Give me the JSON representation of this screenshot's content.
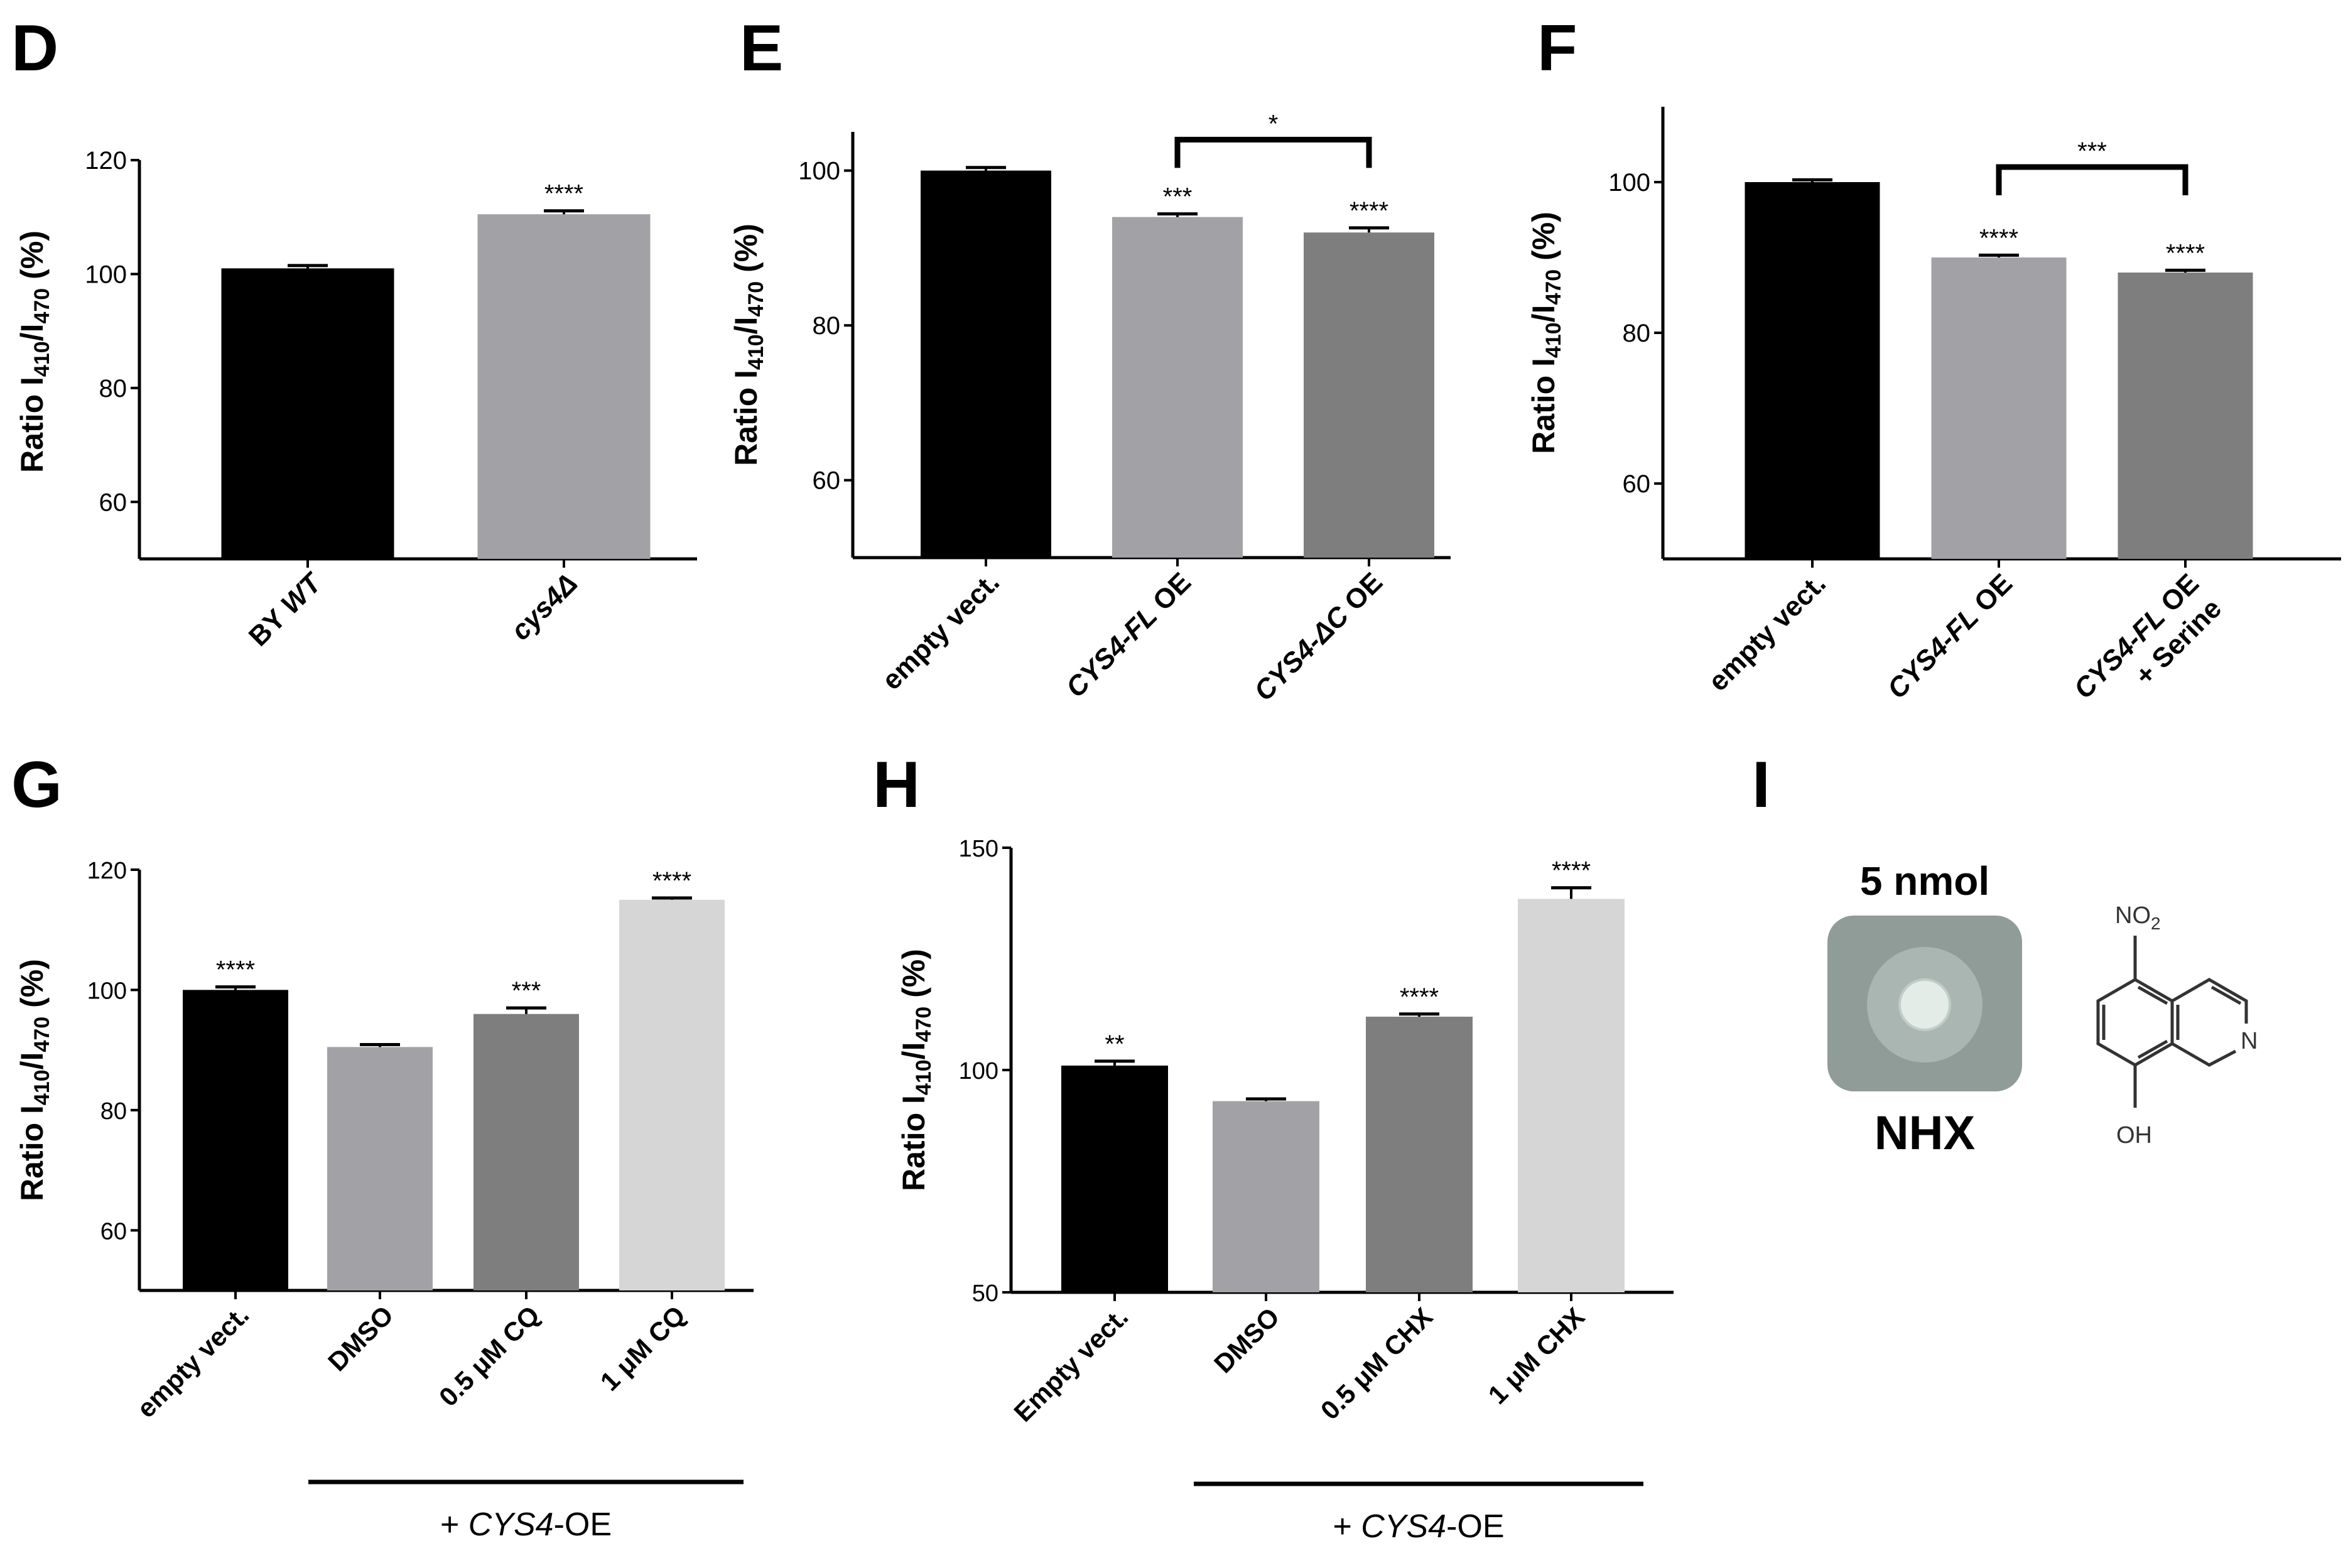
{
  "panels": {
    "D": {
      "letter": "D"
    },
    "E": {
      "letter": "E"
    },
    "F": {
      "letter": "F"
    },
    "G": {
      "letter": "G"
    },
    "H": {
      "letter": "H"
    },
    "I": {
      "letter": "I",
      "amount": "5 nmol",
      "compound": "NHX",
      "group_no2": "NO",
      "group_no2_sub": "2",
      "atom_n": "N",
      "group_oh": "OH"
    }
  },
  "chart_data": [
    {
      "panel": "D",
      "type": "bar",
      "ylabel": {
        "main": "Ratio I",
        "sub1": "410",
        "slash": "/I",
        "sub2": "470",
        "unit": " (%)"
      },
      "ylim": [
        50,
        120
      ],
      "yticks": [
        "60",
        "80",
        "100",
        "120"
      ],
      "categories": [
        {
          "parts": [
            {
              "t": "BY ",
              "i": false
            },
            {
              "t": "WT",
              "i": true
            }
          ]
        },
        {
          "parts": [
            {
              "t": "cys4Δ",
              "i": true
            }
          ]
        }
      ],
      "values": [
        101,
        110.5
      ],
      "errors": [
        0.5,
        0.6
      ],
      "colors": [
        "#000000",
        "#a2a2a6"
      ],
      "stars": [
        "",
        "****"
      ],
      "brackets": [],
      "groupline": null
    },
    {
      "panel": "E",
      "type": "bar",
      "ylabel": {
        "main": "Ratio I",
        "sub1": "410",
        "slash": "/I",
        "sub2": "470",
        "unit": " (%)"
      },
      "ylim": [
        50,
        105
      ],
      "yticks": [
        "60",
        "80",
        "100"
      ],
      "categories": [
        {
          "parts": [
            {
              "t": "empty vect.",
              "i": false
            }
          ]
        },
        {
          "parts": [
            {
              "t": "CYS4-FL",
              "i": true
            },
            {
              "t": " OE",
              "i": false
            }
          ]
        },
        {
          "parts": [
            {
              "t": "CYS4-ΔC",
              "i": true
            },
            {
              "t": " OE",
              "i": false
            }
          ]
        }
      ],
      "values": [
        100,
        94,
        92
      ],
      "errors": [
        0.4,
        0.4,
        0.6
      ],
      "colors": [
        "#000000",
        "#a2a2a6",
        "#7e7e7e"
      ],
      "stars": [
        "",
        "***",
        "****"
      ],
      "brackets": [
        {
          "from": 1,
          "to": 2,
          "y": 104,
          "label": "*"
        }
      ],
      "groupline": null
    },
    {
      "panel": "F",
      "type": "bar",
      "ylabel": {
        "main": "Ratio I",
        "sub1": "410",
        "slash": "/I",
        "sub2": "470",
        "unit": " (%)"
      },
      "ylim": [
        50,
        110
      ],
      "yticks": [
        "60",
        "80",
        "100"
      ],
      "categories": [
        {
          "parts": [
            {
              "t": "empty vect.",
              "i": false
            }
          ]
        },
        {
          "parts": [
            {
              "t": "CYS4-FL",
              "i": true
            },
            {
              "t": " OE",
              "i": false
            }
          ]
        },
        {
          "parts": [
            {
              "t": "CYS4-FL",
              "i": true
            },
            {
              "t": " OE",
              "i": false
            }
          ],
          "line2": "+ Serine"
        }
      ],
      "values": [
        100,
        90,
        88
      ],
      "errors": [
        0.3,
        0.3,
        0.3
      ],
      "colors": [
        "#000000",
        "#a2a2a6",
        "#7e7e7e"
      ],
      "stars": [
        "",
        "****",
        "****"
      ],
      "brackets": [
        {
          "from": 1,
          "to": 2,
          "y": 102,
          "label": "***"
        }
      ],
      "groupline": null
    },
    {
      "panel": "G",
      "type": "bar",
      "ylabel": {
        "main": "Ratio I",
        "sub1": "410",
        "slash": "/I",
        "sub2": "470",
        "unit": " (%)"
      },
      "ylim": [
        50,
        120
      ],
      "yticks": [
        "60",
        "80",
        "100",
        "120"
      ],
      "categories": [
        {
          "parts": [
            {
              "t": "empty vect.",
              "i": false
            }
          ]
        },
        {
          "parts": [
            {
              "t": "DMSO",
              "i": false
            }
          ]
        },
        {
          "parts": [
            {
              "t": "0.5 μM CQ",
              "i": false
            }
          ]
        },
        {
          "parts": [
            {
              "t": "1 μM CQ",
              "i": false
            }
          ]
        }
      ],
      "values": [
        100,
        90.5,
        96,
        115
      ],
      "errors": [
        0.5,
        0.4,
        1.0,
        0.3
      ],
      "colors": [
        "#000000",
        "#a2a2a6",
        "#7e7e7e",
        "#d6d6d6"
      ],
      "stars": [
        "****",
        "",
        "***",
        "****"
      ],
      "brackets": [],
      "groupline": {
        "from": 1,
        "to": 3,
        "parts": [
          {
            "t": "+ ",
            "i": false
          },
          {
            "t": "CYS4",
            "i": true
          },
          {
            "t": "-OE",
            "i": false
          }
        ]
      }
    },
    {
      "panel": "H",
      "type": "bar",
      "ylabel": {
        "main": "Ratio I",
        "sub1": "410",
        "slash": "/I",
        "sub2": "470",
        "unit": " (%)"
      },
      "ylim": [
        50,
        150
      ],
      "yticks": [
        "50",
        "100",
        "150"
      ],
      "categories": [
        {
          "parts": [
            {
              "t": "Empty vect.",
              "i": false
            }
          ]
        },
        {
          "parts": [
            {
              "t": "DMSO",
              "i": false
            }
          ]
        },
        {
          "parts": [
            {
              "t": "0.5 μM CHX",
              "i": false
            }
          ]
        },
        {
          "parts": [
            {
              "t": "1 μM CHX",
              "i": false
            }
          ]
        }
      ],
      "values": [
        101,
        93,
        112,
        138.5
      ],
      "errors": [
        1.0,
        0.5,
        0.6,
        2.5
      ],
      "colors": [
        "#000000",
        "#a2a2a6",
        "#7e7e7e",
        "#d6d6d6"
      ],
      "stars": [
        "**",
        "",
        "****",
        "****"
      ],
      "brackets": [],
      "groupline": {
        "from": 1,
        "to": 3,
        "parts": [
          {
            "t": "+ ",
            "i": false
          },
          {
            "t": "CYS4",
            "i": true
          },
          {
            "t": "-OE",
            "i": false
          }
        ]
      }
    }
  ]
}
